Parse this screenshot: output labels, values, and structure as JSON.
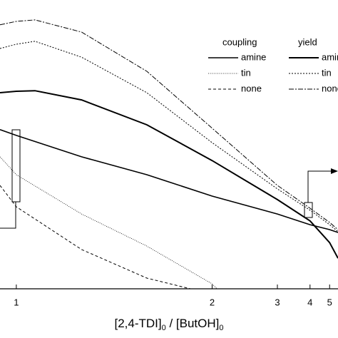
{
  "chart_data": {
    "type": "line",
    "x_label_parts": [
      "[2,4-TDI]",
      "0",
      " / [ButOH]",
      "0"
    ],
    "xscale": "reciprocal",
    "xlim": [
      0.96,
      5.6
    ],
    "xticks": [
      1,
      2,
      3,
      4,
      5
    ],
    "ylim": [
      0,
      100
    ],
    "series_groups": [
      {
        "name": "coupling",
        "series": [
          {
            "name": "amine",
            "color": "#000000",
            "dash": "solid",
            "width": 1.6,
            "x": [
              0.96,
              1,
              1.2,
              1.5,
              2,
              3,
              4,
              5,
              5.6
            ],
            "values": [
              55.1,
              53.1,
              45.7,
              39.5,
              32.1,
              25.9,
              22.2,
              20.5,
              19.5
            ]
          },
          {
            "name": "tin",
            "color": "#000000",
            "dash": "dot",
            "width": 0.8,
            "x": [
              0.96,
              1,
              1.2,
              1.5,
              2,
              2.05
            ],
            "values": [
              45.7,
              39.5,
              25.9,
              14.8,
              1.7,
              0
            ]
          },
          {
            "name": "none",
            "color": "#000000",
            "dash": "dash",
            "width": 1,
            "x": [
              0.96,
              1,
              1.2,
              1.5,
              1.8
            ],
            "values": [
              35.8,
              28.4,
              13.6,
              3.7,
              0
            ]
          }
        ]
      },
      {
        "name": "yield",
        "series": [
          {
            "name": "amine",
            "color": "#000000",
            "dash": "solid",
            "width": 2,
            "x": [
              0.96,
              1,
              1.05,
              1.2,
              1.5,
              2,
              3,
              4,
              5,
              5.6
            ],
            "values": [
              67.9,
              68.4,
              68.6,
              65.4,
              56.8,
              44.4,
              30.9,
              23.5,
              16.0,
              10.6
            ]
          },
          {
            "name": "tin",
            "color": "#000000",
            "dash": "shortdash",
            "width": 1,
            "x": [
              0.96,
              1,
              1.05,
              1.2,
              1.5,
              2,
              3,
              4,
              5,
              5.6
            ],
            "values": [
              83.2,
              84.7,
              85.7,
              80.2,
              67.9,
              50.6,
              34.6,
              27.2,
              22.2,
              19.8
            ]
          },
          {
            "name": "none",
            "color": "#000000",
            "dash": "dashdot",
            "width": 1,
            "x": [
              0.96,
              1,
              1.05,
              1.2,
              1.5,
              2,
              3,
              4,
              5,
              5.6
            ],
            "values": [
              91.4,
              92.6,
              93.1,
              88.9,
              75.3,
              55.6,
              35.8,
              27.9,
              23.0,
              20.5
            ]
          }
        ]
      }
    ]
  }
}
